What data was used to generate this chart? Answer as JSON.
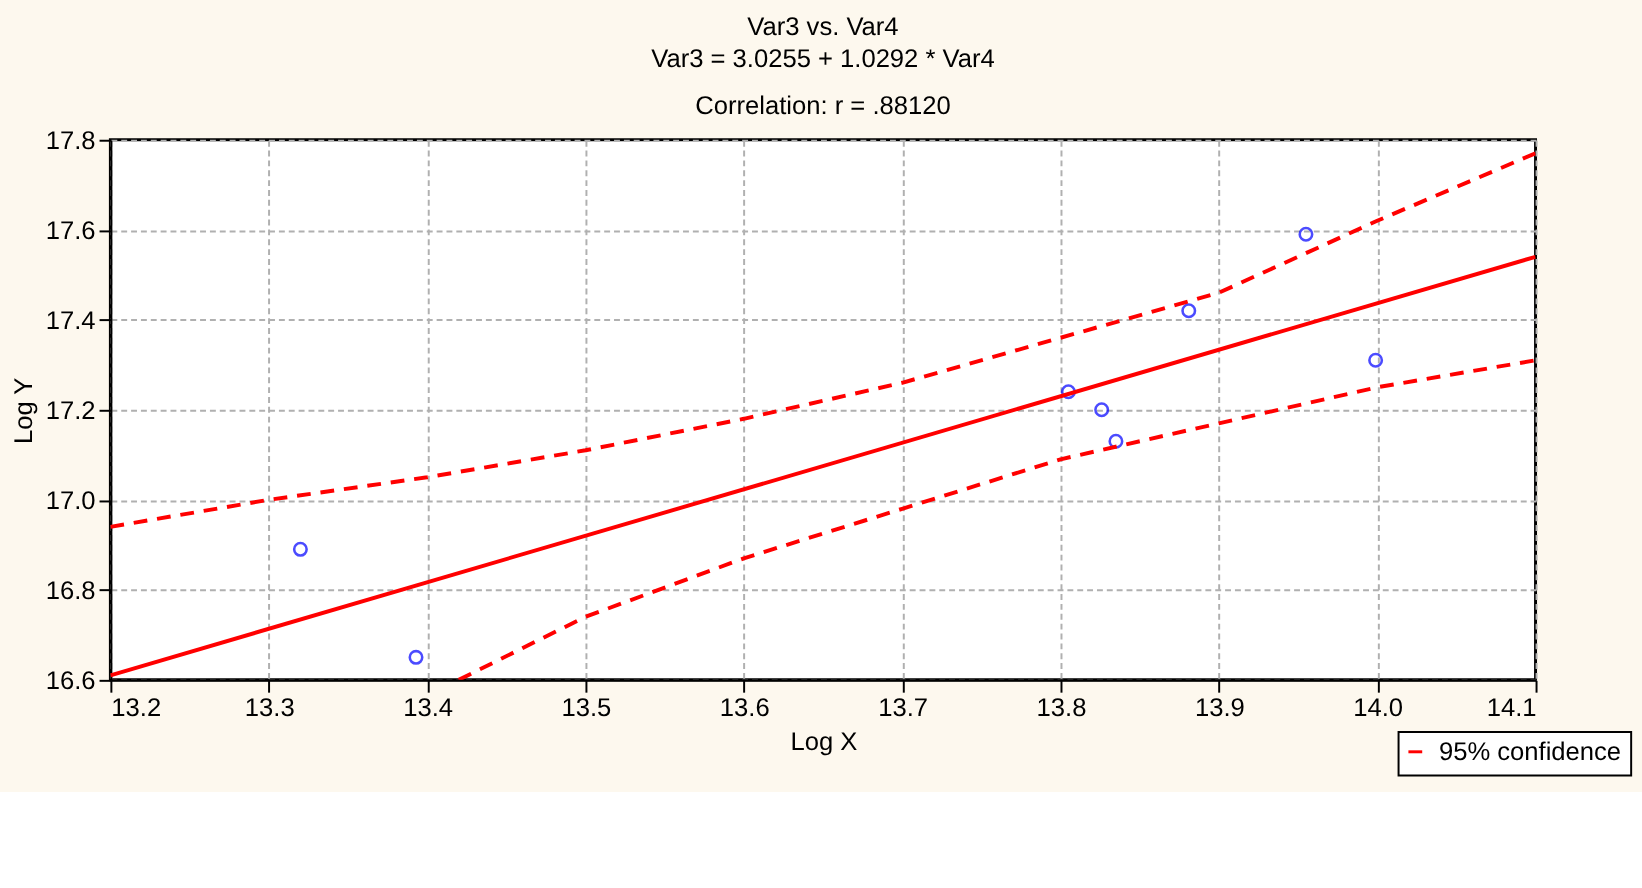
{
  "chart_data": {
    "type": "scatter",
    "title": "Var3     vs. Var4",
    "subtitle": [
      "Var3     = 3.0255 + 1.0292 * Var4",
      "Correlation: r = .88120"
    ],
    "xlabel": "Log X",
    "ylabel": "Log Y",
    "xlim": [
      13.2,
      14.1
    ],
    "xticks": [
      13.2,
      13.3,
      13.4,
      13.5,
      13.6,
      13.7,
      13.8,
      13.9,
      {
        "value": 14.0,
        "label": "14.0"
      },
      14.1
    ],
    "ylim": [
      16.6,
      17.8
    ],
    "yticks": [
      16.6,
      16.8,
      {
        "value": 17.0,
        "label": "17.0"
      },
      17.2,
      17.4,
      17.6,
      17.8
    ],
    "grid": true,
    "legend": "bottom right",
    "series": [
      {
        "color": "#0000ff",
        "marker": "circle",
        "x": [
          13.32,
          13.393,
          13.805,
          13.826,
          13.835,
          13.881,
          13.955,
          13.999
        ],
        "values": [
          16.89,
          16.65,
          17.24,
          17.2,
          17.13,
          17.42,
          17.59,
          17.31
        ]
      },
      {
        "type": "line",
        "color": "#ff0000",
        "line_style": "solid",
        "x": [
          13.2,
          14.1
        ],
        "values": [
          16.61,
          17.54
        ]
      },
      {
        "type": "line",
        "name": "95% confidence",
        "color": "#ff0000",
        "line_style": "dashed",
        "x": [
          13.2,
          13.3,
          13.4,
          13.5,
          13.6,
          13.7,
          13.8,
          13.9,
          14.0,
          14.1
        ],
        "values": [
          16.94,
          17.0,
          17.05,
          17.11,
          17.18,
          17.26,
          17.36,
          17.46,
          17.62,
          17.77
        ]
      },
      {
        "type": "line",
        "color": "#ff0000",
        "line_style": "dashed",
        "x": [
          13.42,
          13.5,
          13.6,
          13.7,
          13.8,
          13.9,
          14.0,
          14.1
        ],
        "values": [
          16.6,
          16.74,
          16.87,
          16.98,
          17.09,
          17.17,
          17.25,
          17.31
        ]
      }
    ]
  }
}
